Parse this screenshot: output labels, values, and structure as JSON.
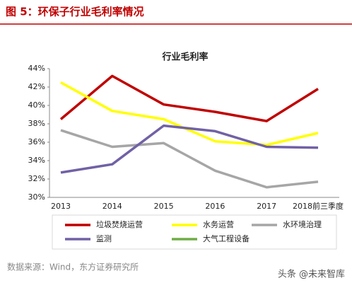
{
  "header": {
    "title": "图 5：环保子行业毛利率情况"
  },
  "chart_data": {
    "type": "line",
    "title": "行业毛利率",
    "categories": [
      "2013",
      "2014",
      "2015",
      "2016",
      "2017",
      "2018前三季度"
    ],
    "series": [
      {
        "name": "垃圾焚烧运营",
        "color": "#c00000",
        "values": [
          38.5,
          43.2,
          40.1,
          39.3,
          38.3,
          41.8
        ]
      },
      {
        "name": "水务运营",
        "color": "#ffff00",
        "values": [
          42.5,
          39.4,
          38.5,
          36.1,
          35.7,
          37.0
        ]
      },
      {
        "name": "水环境治理",
        "color": "#a6a6a6",
        "values": [
          37.3,
          35.5,
          35.9,
          32.9,
          31.1,
          31.7
        ]
      },
      {
        "name": "监测",
        "color": "#7161a5",
        "values": [
          32.7,
          33.6,
          37.8,
          37.2,
          35.5,
          35.4
        ]
      },
      {
        "name": "大气工程设备",
        "color": "#70ad47",
        "values": [
          null,
          null,
          null,
          null,
          null,
          null
        ]
      }
    ],
    "ylim": [
      30,
      44
    ],
    "yticks": [
      {
        "value": 30,
        "label": "30%"
      },
      {
        "value": 32,
        "label": "32%"
      },
      {
        "value": 34,
        "label": "34%"
      },
      {
        "value": 36,
        "label": "36%"
      },
      {
        "value": 38,
        "label": "38%"
      },
      {
        "value": 40,
        "label": "40%"
      },
      {
        "value": 42,
        "label": "42%"
      },
      {
        "value": 44,
        "label": "44%"
      }
    ],
    "grid": false
  },
  "source": "数据来源：Wind，东方证券研究所",
  "watermark": "头条 @未来智库"
}
